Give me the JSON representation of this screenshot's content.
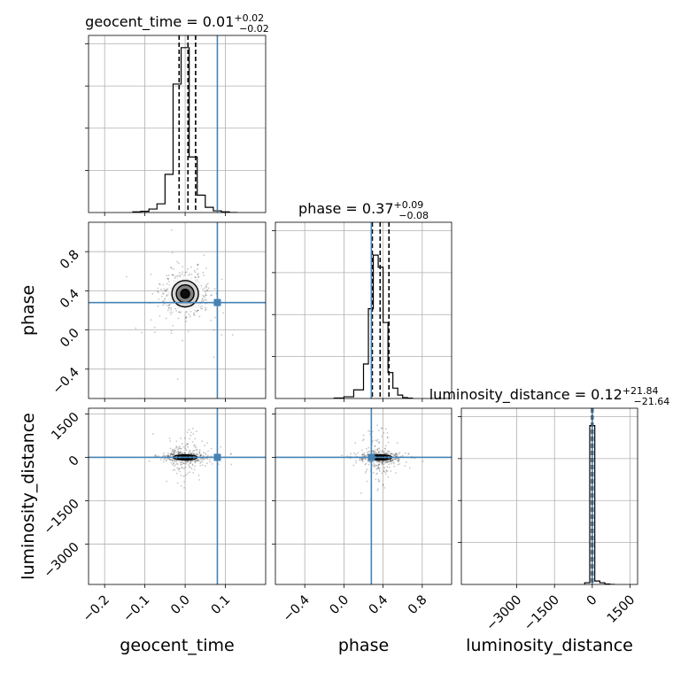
{
  "chart_data": {
    "type": "corner",
    "parameters": [
      "geocent_time",
      "phase",
      "luminosity_distance"
    ],
    "truths": {
      "geocent_time": 0.08,
      "phase": 0.28,
      "luminosity_distance": 0
    },
    "truth_color": "#4682b4",
    "grid": true,
    "marginals": [
      {
        "param": "geocent_time",
        "title_prefix": "geocent_time = 0.01",
        "title_sup": "+0.02",
        "title_sub": "−0.02",
        "quantiles": [
          -0.015,
          0.007,
          0.026
        ],
        "bin_edges": [
          -0.13,
          -0.11,
          -0.09,
          -0.07,
          -0.05,
          -0.03,
          -0.01,
          0.01,
          0.03,
          0.05,
          0.07,
          0.09,
          0.11,
          0.13
        ],
        "counts": [
          0.004,
          0.007,
          0.02,
          0.05,
          0.22,
          0.74,
          0.95,
          0.32,
          0.1,
          0.03,
          0.01,
          0.004,
          0.0
        ],
        "xlim": [
          -0.24,
          0.2
        ],
        "xticks": [
          -0.2,
          -0.1,
          0.0,
          0.1
        ],
        "xticklabels": [
          "−0.2",
          "−0.1",
          "0.0",
          "0.1"
        ]
      },
      {
        "param": "phase",
        "title_prefix": "phase = 0.37",
        "title_sup": "+0.09",
        "title_sub": "−0.08",
        "quantiles": [
          0.29,
          0.37,
          0.46
        ],
        "bin_edges": [
          -0.1,
          0.0,
          0.1,
          0.2,
          0.25,
          0.3,
          0.35,
          0.4,
          0.45,
          0.5,
          0.55,
          0.6,
          0.65,
          0.7
        ],
        "counts": [
          0.003,
          0.01,
          0.05,
          0.2,
          0.52,
          0.83,
          0.76,
          0.44,
          0.15,
          0.06,
          0.02,
          0.005,
          0.002
        ],
        "xlim": [
          -0.7,
          1.1
        ],
        "xticks": [
          -0.4,
          0.0,
          0.4,
          0.8
        ],
        "xticklabels": [
          "−0.4",
          "0.0",
          "0.4",
          "0.8"
        ]
      },
      {
        "param": "luminosity_distance",
        "title_prefix": "luminosity_distance = 0.12",
        "title_sup": "+21.84",
        "title_sub": "−21.64",
        "quantiles": [
          -21.5,
          0.12,
          21.96
        ],
        "bin_edges": [
          -300,
          -100,
          100,
          300,
          500,
          700,
          900
        ],
        "counts": [
          0.01,
          0.92,
          0.02,
          0.01,
          0.003,
          0.0
        ],
        "xlim": [
          -5200,
          1800
        ],
        "xticks": [
          -3000,
          -1500,
          0,
          1500
        ],
        "xticklabels": [
          "−3000",
          "−1500",
          "0",
          "1500"
        ]
      }
    ],
    "axis_labels": [
      "geocent_time",
      "phase",
      "luminosity_distance"
    ],
    "row_y": [
      null,
      {
        "param": "phase",
        "ylim": [
          -0.7,
          1.1
        ],
        "yticks": [
          -0.4,
          0.0,
          0.4,
          0.8
        ],
        "yticklabels": [
          "−0.4",
          "0.0",
          "0.4",
          "0.8"
        ]
      },
      {
        "param": "luminosity_distance",
        "ylim": [
          -4400,
          1700
        ],
        "yticks": [
          -3000,
          -1500,
          0,
          1500
        ],
        "yticklabels": [
          "−3000",
          "−1500",
          "0",
          "1500"
        ]
      }
    ],
    "samples_2d": [
      {
        "x": "geocent_time",
        "y": "phase",
        "center": [
          0.0,
          0.37
        ],
        "spread": [
          0.022,
          0.09
        ]
      },
      {
        "x": "geocent_time",
        "y": "luminosity_distance",
        "center": [
          0.0,
          0.0
        ],
        "spread": [
          0.02,
          60
        ]
      },
      {
        "x": "phase",
        "y": "luminosity_distance",
        "center": [
          0.37,
          0.0
        ],
        "spread": [
          0.08,
          60
        ]
      }
    ]
  }
}
